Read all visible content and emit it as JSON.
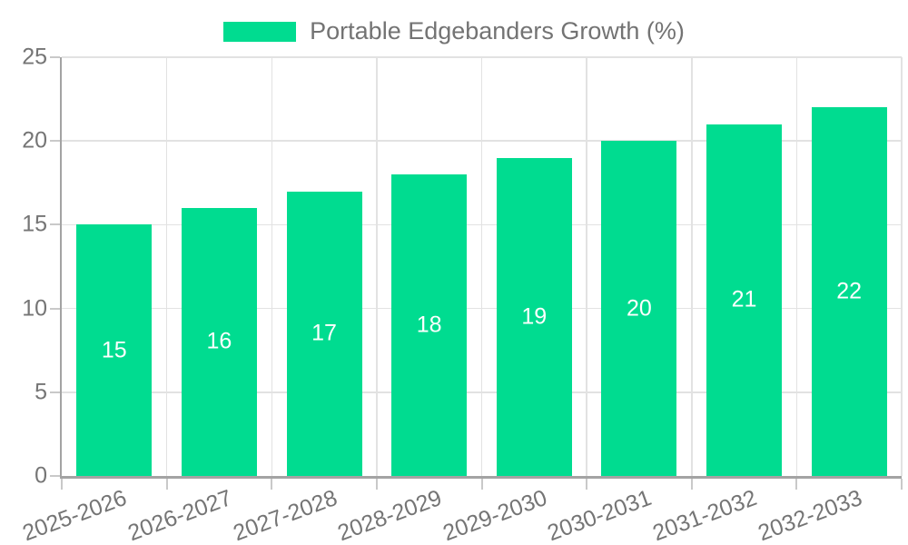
{
  "legend": {
    "label": "Portable Edgebanders Growth (%)"
  },
  "colors": {
    "bar": "#00dc90",
    "bar_value_text": "#ffffff",
    "grid": "#e2e2e2",
    "axis": "#a3a3a3",
    "tick": "#c9c9c9",
    "tick_text": "#757575",
    "legend_text": "#737373",
    "background": "#ffffff"
  },
  "chart_data": {
    "type": "bar",
    "title": "Portable Edgebanders Growth (%)",
    "categories": [
      "2025-2026",
      "2026-2027",
      "2027-2028",
      "2028-2029",
      "2029-2030",
      "2030-2031",
      "2031-2032",
      "2032-2033"
    ],
    "values": [
      15,
      16,
      17,
      18,
      19,
      20,
      21,
      22
    ],
    "value_labels": [
      "15",
      "16",
      "17",
      "18",
      "19",
      "20",
      "21",
      "22"
    ],
    "xlabel": "",
    "ylabel": "",
    "ylim": [
      0,
      25
    ],
    "yticks": [
      0,
      5,
      10,
      15,
      20,
      25
    ],
    "grid": true,
    "legend_position": "top",
    "x_label_rotation_deg": -20,
    "value_label_position": "center-of-bar"
  }
}
